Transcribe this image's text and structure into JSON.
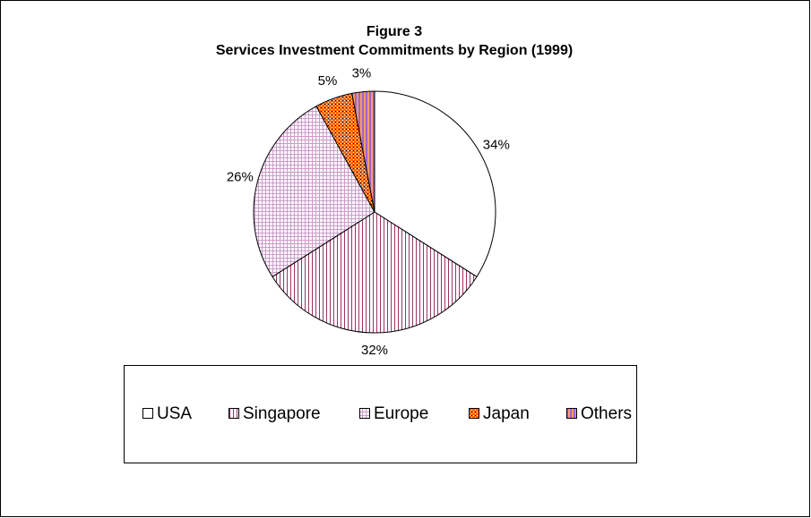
{
  "chart_data": {
    "type": "pie",
    "title": "Figure 3",
    "subtitle": "Services Investment Commitments by Region (1999)",
    "categories": [
      "USA",
      "Singapore",
      "Europe",
      "Japan",
      "Others"
    ],
    "values": [
      34,
      32,
      26,
      5,
      3
    ],
    "value_labels": [
      "34%",
      "32%",
      "26%",
      "5%",
      "3%"
    ],
    "colors": [
      "#ffffff",
      "#993366",
      "#cc99cc",
      "#ff6600",
      "#9966cc"
    ],
    "legend": "bottom"
  }
}
